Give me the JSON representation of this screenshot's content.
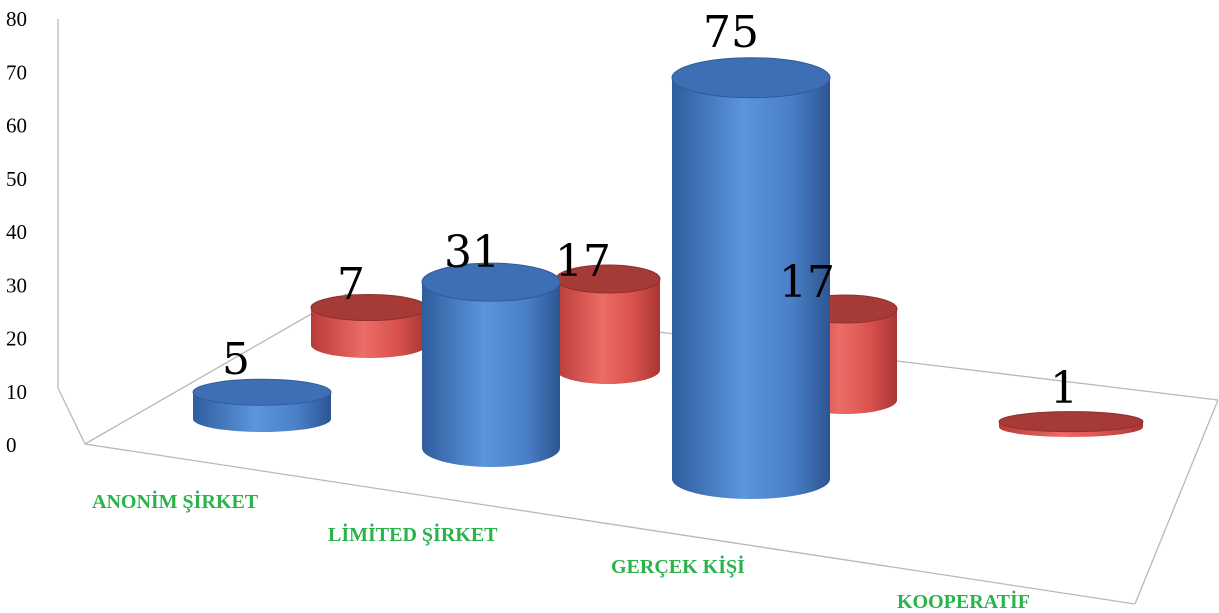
{
  "chart_data": {
    "type": "bar",
    "style": "3d-cylinder",
    "categories": [
      "ANONİM ŞİRKET",
      "LİMİTED ŞİRKET",
      "GERÇEK KİŞİ",
      "KOOPERATİF"
    ],
    "series": [
      {
        "values": [
          5,
          31,
          75,
          0
        ],
        "color": "#4a7fc8"
      },
      {
        "values": [
          7,
          17,
          17,
          1
        ],
        "color": "#d2504c"
      }
    ],
    "yticks": [
      "0",
      "10",
      "20",
      "30",
      "40",
      "50",
      "60",
      "70",
      "80"
    ],
    "ylim": [
      0,
      80
    ],
    "grid": false,
    "legend": "none",
    "category_label_color": "#2ab34a"
  }
}
